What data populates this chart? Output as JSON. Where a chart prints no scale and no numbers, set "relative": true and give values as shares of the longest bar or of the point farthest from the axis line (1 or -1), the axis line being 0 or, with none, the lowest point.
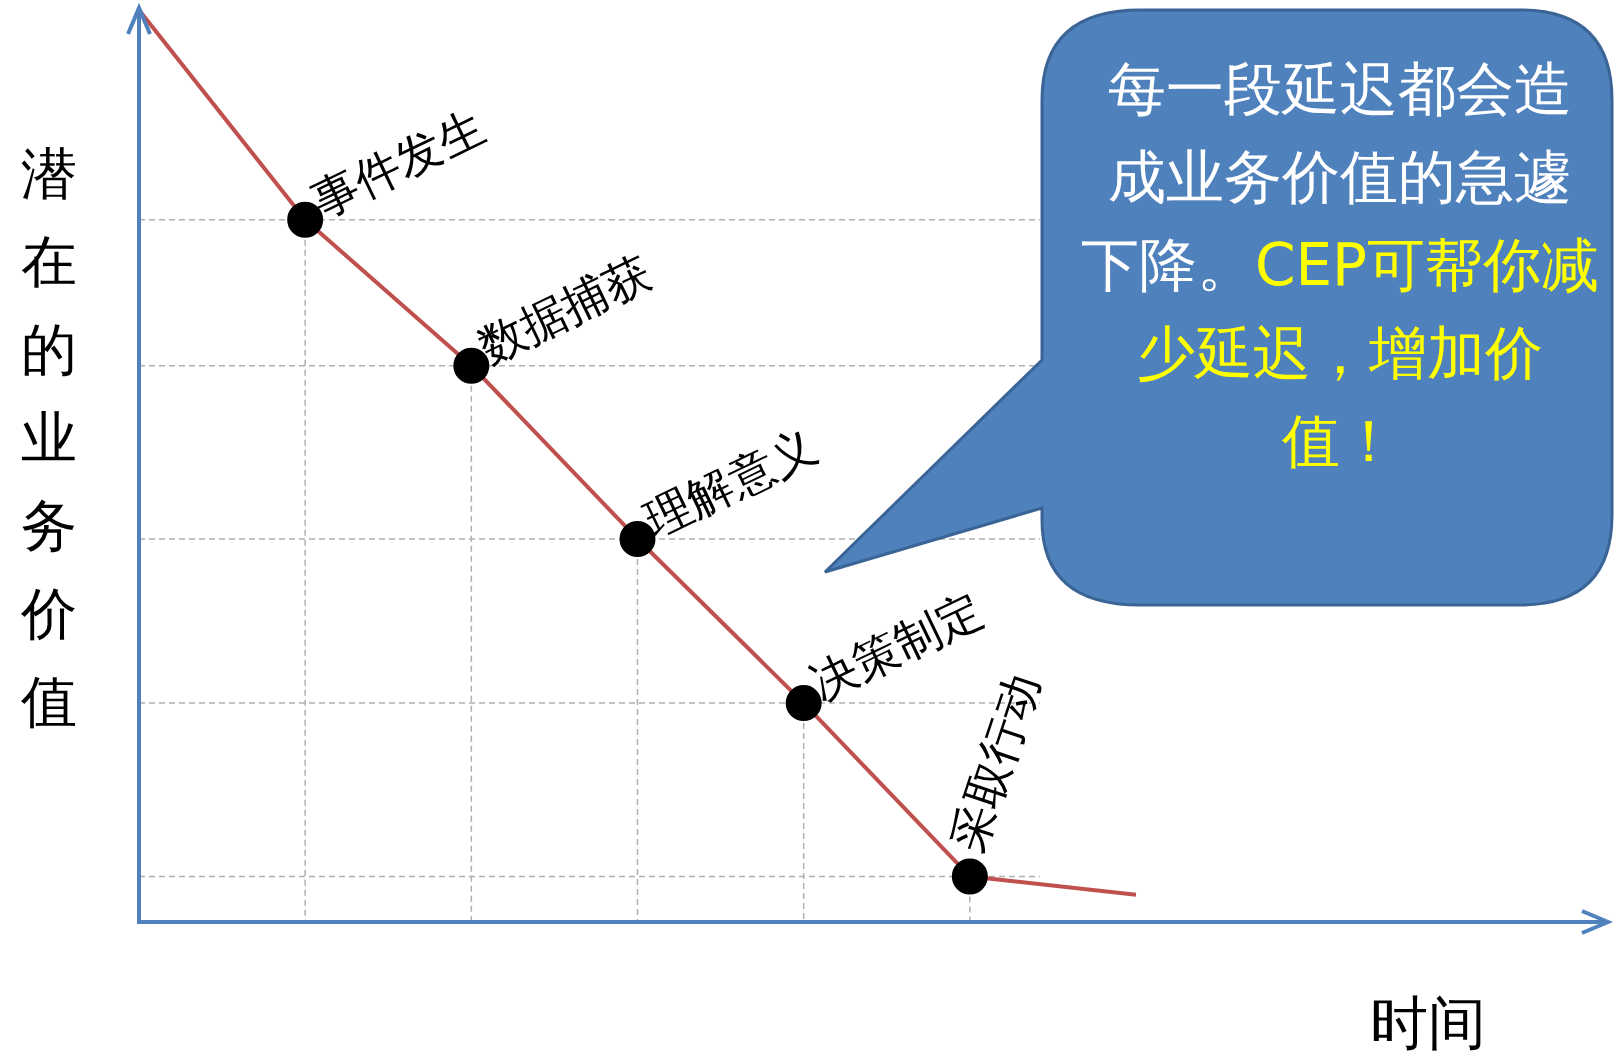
{
  "chart_data": {
    "type": "line",
    "relative": true,
    "ylabel": "潜在的业务价值",
    "xlabel": "时间",
    "categories": [
      null,
      null,
      null,
      null,
      null,
      null,
      null
    ],
    "series": [
      {
        "color": "#c0504d",
        "values": [
          1,
          0.77,
          0.61,
          0.42,
          0.24,
          0.05,
          0.03
        ]
      }
    ],
    "marker": "circle",
    "annotations": [
      "事件发生",
      "数据捕获",
      "理解意义",
      "决策制定",
      "采取行动",
      "每一段延迟都会造成业务价值的急遽下降。",
      "CEP可帮你减少延迟，增加价值！"
    ],
    "legend": false
  }
}
